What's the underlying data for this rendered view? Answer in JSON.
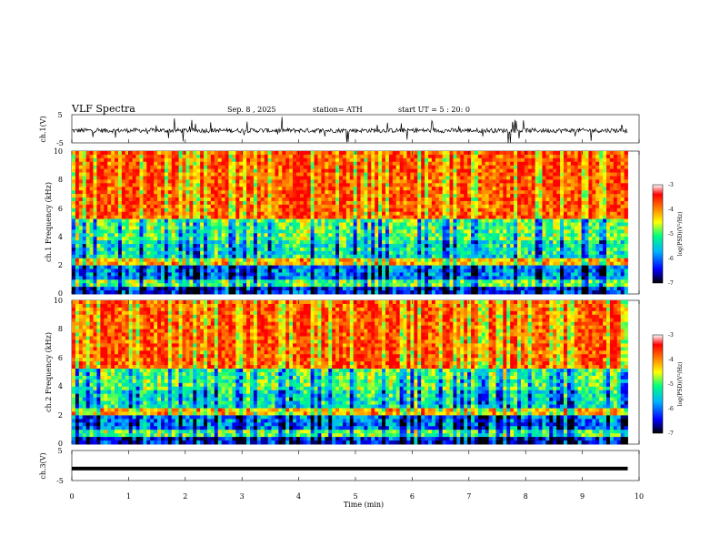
{
  "header": {
    "title": "VLF Spectra",
    "date": "Sep. 8 , 2025",
    "station": "station= ATH",
    "start_ut": "start UT =   5 : 20: 0"
  },
  "chart_data": [
    {
      "type": "line",
      "panel": "ch1-waveform",
      "ylabel": "ch.1(V)",
      "y_ticks": [
        "5",
        "-5"
      ],
      "ylim": [
        -5,
        5
      ],
      "baseline": -0.6,
      "xlim": [
        0,
        10
      ],
      "data_end_min": 9.8
    },
    {
      "type": "heatmap",
      "panel": "ch1-spectrogram",
      "ylabel": "ch.1  Frequency  (kHz)",
      "y_ticks": [
        "0",
        "2",
        "4",
        "6",
        "8",
        "10"
      ],
      "ylim": [
        0,
        10
      ],
      "xlim": [
        0,
        10
      ],
      "colorbar": {
        "label": "log(PSD)(V²/Hz)",
        "ticks": [
          "-3",
          "-4",
          "-5",
          "-6",
          "-7"
        ],
        "range": [
          -7,
          -3
        ]
      }
    },
    {
      "type": "heatmap",
      "panel": "ch2-spectrogram",
      "ylabel": "ch.2  Frequency  (kHz)",
      "y_ticks": [
        "0",
        "2",
        "4",
        "6",
        "8",
        "10"
      ],
      "ylim": [
        0,
        10
      ],
      "xlim": [
        0,
        10
      ],
      "colorbar": {
        "label": "log(PSD)(V²/Hz)",
        "ticks": [
          "-3",
          "-4",
          "-5",
          "-6",
          "-7"
        ],
        "range": [
          -7,
          -3
        ]
      }
    },
    {
      "type": "line",
      "panel": "ch3-waveform",
      "ylabel": "ch.3(V)",
      "y_ticks": [
        "5",
        "-5"
      ],
      "ylim": [
        -5,
        5
      ],
      "baseline": -1.0,
      "xlim": [
        0,
        10
      ],
      "data_end_min": 9.8
    }
  ],
  "xaxis": {
    "label": "Time  (min)",
    "ticks": [
      "0",
      "1",
      "2",
      "3",
      "4",
      "5",
      "6",
      "7",
      "8",
      "9",
      "10"
    ]
  },
  "colors": {
    "colormap": [
      "#000000",
      "#0000ff",
      "#00b4ff",
      "#00ff80",
      "#ffff00",
      "#ff8000",
      "#ff0000",
      "#ffffff"
    ]
  }
}
